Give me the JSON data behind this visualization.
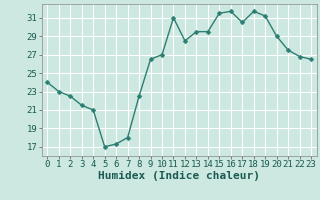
{
  "x": [
    0,
    1,
    2,
    3,
    4,
    5,
    6,
    7,
    8,
    9,
    10,
    11,
    12,
    13,
    14,
    15,
    16,
    17,
    18,
    19,
    20,
    21,
    22,
    23
  ],
  "y": [
    24.0,
    23.0,
    22.5,
    21.5,
    21.0,
    17.0,
    17.3,
    18.0,
    22.5,
    26.5,
    27.0,
    31.0,
    28.5,
    29.5,
    29.5,
    31.5,
    31.7,
    30.5,
    31.7,
    31.2,
    29.0,
    27.5,
    26.8,
    26.5
  ],
  "line_color": "#2d7e72",
  "marker": "D",
  "marker_size": 2.5,
  "bg_color": "#cce8e0",
  "grid_color": "#ffffff",
  "xlabel": "Humidex (Indice chaleur)",
  "xlim": [
    -0.5,
    23.5
  ],
  "ylim": [
    16.0,
    32.5
  ],
  "yticks": [
    17,
    19,
    21,
    23,
    25,
    27,
    29,
    31
  ],
  "xticks": [
    0,
    1,
    2,
    3,
    4,
    5,
    6,
    7,
    8,
    9,
    10,
    11,
    12,
    13,
    14,
    15,
    16,
    17,
    18,
    19,
    20,
    21,
    22,
    23
  ],
  "tick_fontsize": 6.5,
  "xlabel_fontsize": 8,
  "line_width": 1.0
}
